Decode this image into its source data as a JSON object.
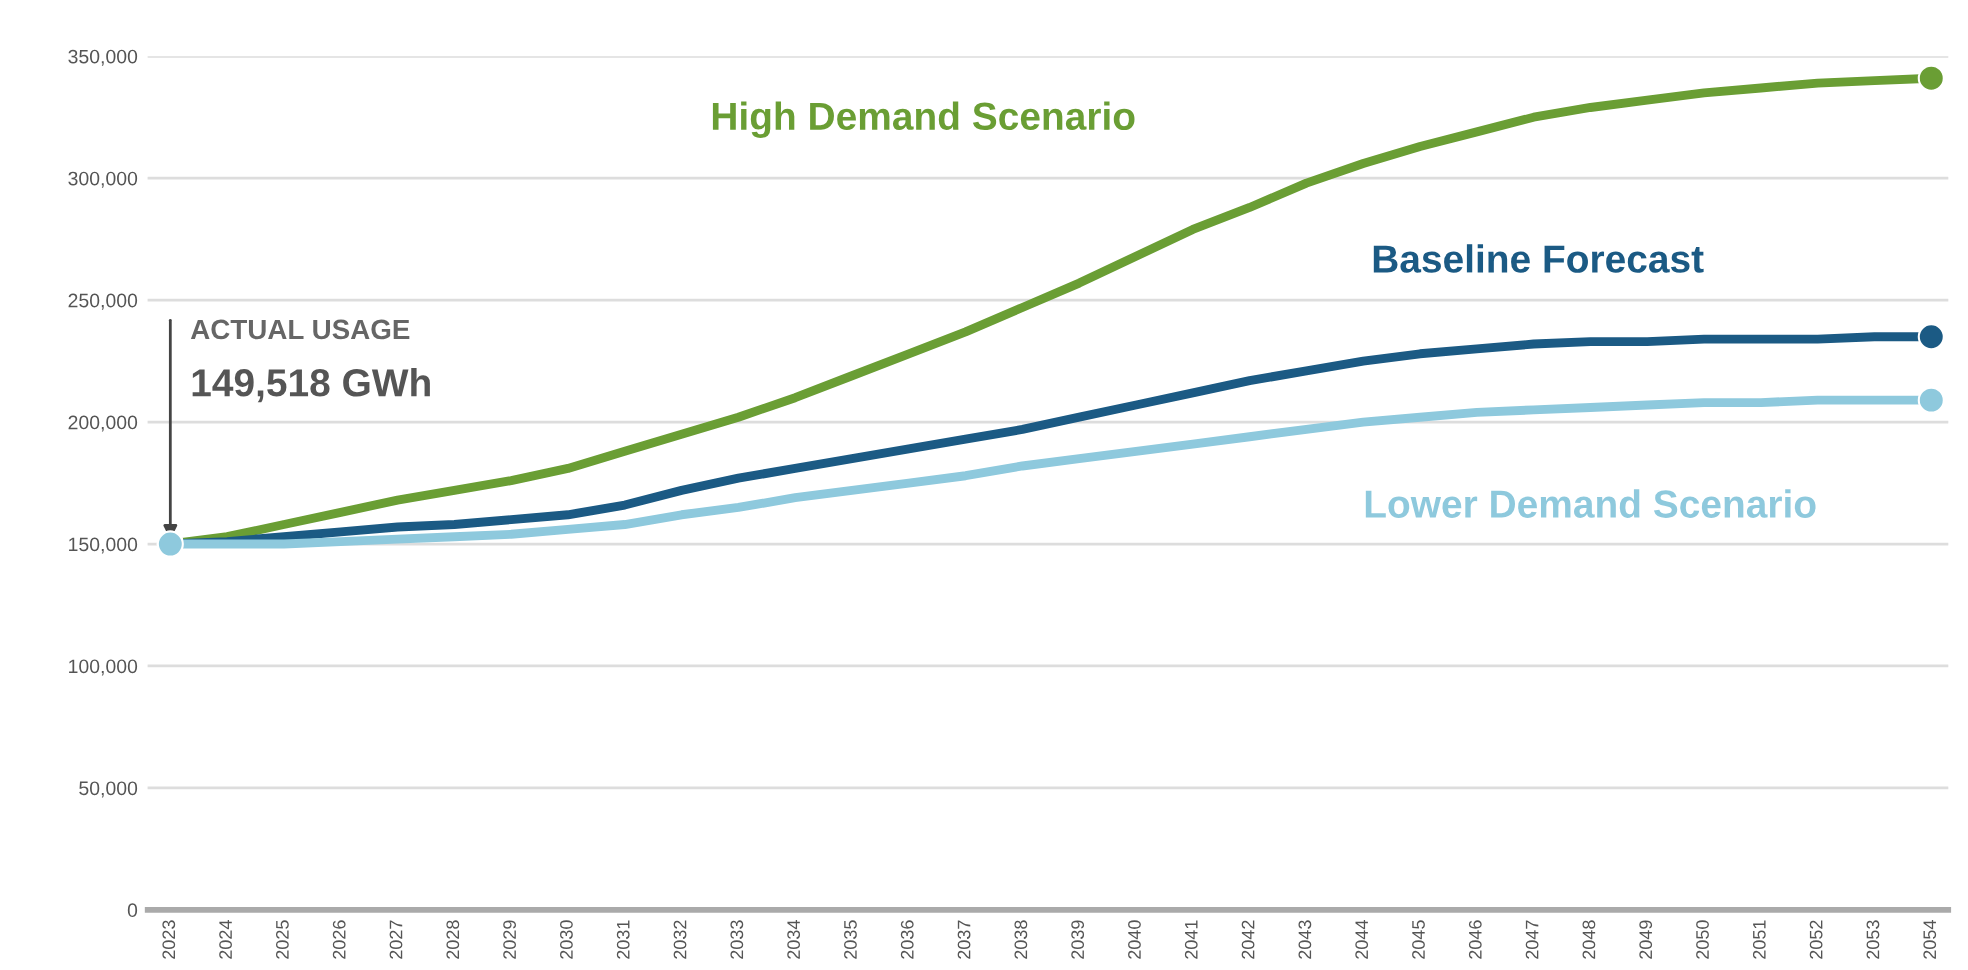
{
  "chart_data": {
    "type": "line",
    "categories": [
      "2023",
      "2024",
      "2025",
      "2026",
      "2027",
      "2028",
      "2029",
      "2030",
      "2031",
      "2032",
      "2033",
      "2034",
      "2035",
      "2036",
      "2037",
      "2038",
      "2039",
      "2040",
      "2041",
      "2042",
      "2043",
      "2044",
      "2045",
      "2046",
      "2047",
      "2048",
      "2049",
      "2050",
      "2051",
      "2052",
      "2053",
      "2054"
    ],
    "series": [
      {
        "name": "High Demand Scenario",
        "color": "#6a9e34",
        "values": [
          150000,
          153000,
          158000,
          163000,
          168000,
          172000,
          176000,
          181000,
          188000,
          195000,
          202000,
          210000,
          219000,
          228000,
          237000,
          247000,
          257000,
          268000,
          279000,
          288000,
          298000,
          306000,
          313000,
          319000,
          325000,
          329000,
          332000,
          335000,
          337000,
          339000,
          340000,
          341000
        ]
      },
      {
        "name": "Baseline Forecast",
        "color": "#1b5a84",
        "values": [
          150000,
          151000,
          153000,
          155000,
          157000,
          158000,
          160000,
          162000,
          166000,
          172000,
          177000,
          181000,
          185000,
          189000,
          193000,
          197000,
          202000,
          207000,
          212000,
          217000,
          221000,
          225000,
          228000,
          230000,
          232000,
          233000,
          233000,
          234000,
          234000,
          234000,
          235000,
          235000
        ]
      },
      {
        "name": "Lower Demand Scenario",
        "color": "#8ec9dd",
        "values": [
          150000,
          150000,
          150000,
          151000,
          152000,
          153000,
          154000,
          156000,
          158000,
          162000,
          165000,
          169000,
          172000,
          175000,
          178000,
          182000,
          185000,
          188000,
          191000,
          194000,
          197000,
          200000,
          202000,
          204000,
          205000,
          206000,
          207000,
          208000,
          208000,
          209000,
          209000,
          209000
        ]
      }
    ],
    "ylim": [
      0,
      350000
    ],
    "yticks": [
      0,
      {
        "value": 50000,
        "label": "50,000"
      },
      {
        "value": 100000,
        "label": "100,000"
      },
      {
        "value": 150000,
        "label": "150,000"
      },
      {
        "value": 200000,
        "label": "200,000"
      },
      {
        "value": 250000,
        "label": "250,000"
      },
      {
        "value": 300000,
        "label": "300,000"
      },
      {
        "value": 350000,
        "label": "350,000"
      }
    ],
    "grid": "y",
    "legend": false,
    "line_style": "solid",
    "annotations": [
      {
        "text": "ACTUAL USAGE",
        "x": "2023",
        "y": 149518
      },
      "149,518 GWh"
    ]
  }
}
